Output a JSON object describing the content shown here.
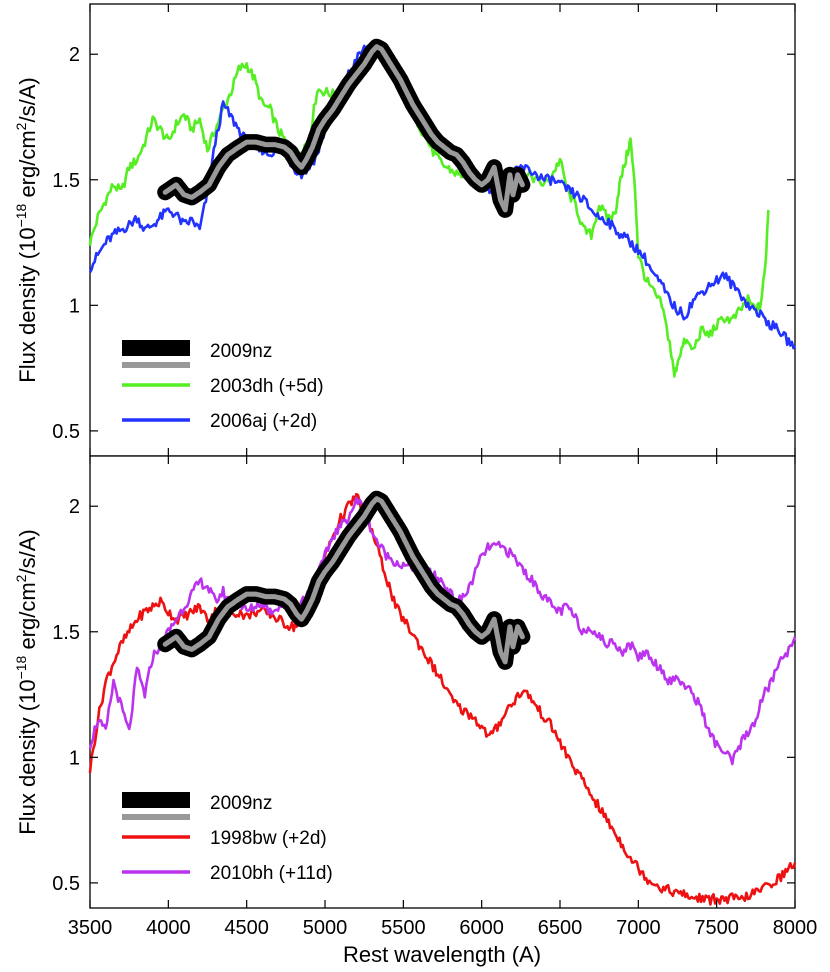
{
  "chart_data": [
    {
      "type": "line",
      "panel": "top",
      "xlabel": "Rest wavelength  (A)",
      "ylabel": "Flux density  (10",
      "ylabel_exp": "−18",
      "ylabel_unit": " erg/cm",
      "ylabel_unit_exp": "2",
      "ylabel_tail": "/s/A)",
      "xlim": [
        3500,
        8000
      ],
      "ylim": [
        0.4,
        2.2
      ],
      "xticks": [
        3500,
        4000,
        4500,
        5000,
        5500,
        6000,
        6500,
        7000,
        7500,
        8000
      ],
      "yticks": [
        0.5,
        1,
        1.5,
        2
      ],
      "ytick_labels": [
        "0.5",
        "1",
        "1.5",
        "2"
      ],
      "legend": [
        "2009nz",
        "2003dh (+5d)",
        "2006aj (+2d)"
      ],
      "legend_position": "bottom-left",
      "series": [
        {
          "name": "2009nz",
          "color": "#000000",
          "overlay_color": "#999999",
          "x": [
            3980,
            4050,
            4100,
            4150,
            4200,
            4260,
            4320,
            4380,
            4450,
            4500,
            4560,
            4620,
            4680,
            4740,
            4780,
            4820,
            4850,
            4880,
            4920,
            4960,
            5000,
            5050,
            5100,
            5150,
            5200,
            5250,
            5300,
            5330,
            5360,
            5400,
            5440,
            5480,
            5520,
            5560,
            5600,
            5640,
            5680,
            5720,
            5760,
            5800,
            5840,
            5880,
            5920,
            5960,
            6000,
            6040,
            6080,
            6120,
            6150,
            6180,
            6200,
            6230,
            6260
          ],
          "y": [
            1.45,
            1.48,
            1.44,
            1.43,
            1.45,
            1.48,
            1.55,
            1.6,
            1.63,
            1.65,
            1.65,
            1.64,
            1.64,
            1.63,
            1.61,
            1.57,
            1.55,
            1.58,
            1.63,
            1.7,
            1.74,
            1.78,
            1.83,
            1.88,
            1.92,
            1.96,
            2.01,
            2.03,
            2.02,
            1.98,
            1.94,
            1.9,
            1.85,
            1.8,
            1.76,
            1.72,
            1.68,
            1.65,
            1.63,
            1.61,
            1.6,
            1.57,
            1.53,
            1.5,
            1.48,
            1.5,
            1.55,
            1.42,
            1.38,
            1.52,
            1.44,
            1.52,
            1.48
          ]
        },
        {
          "name": "2003dh (+5d)",
          "color": "#55ee22",
          "x": [
            3500,
            3550,
            3600,
            3650,
            3700,
            3750,
            3800,
            3850,
            3900,
            3950,
            4000,
            4050,
            4100,
            4150,
            4200,
            4250,
            4300,
            4350,
            4400,
            4450,
            4500,
            4550,
            4600,
            4650,
            4700,
            4750,
            4800,
            4850,
            4900,
            4950,
            5000,
            5050,
            5100,
            5150,
            5200,
            5250,
            5300,
            5350,
            5400,
            5450,
            5500,
            5550,
            5600,
            5650,
            5700,
            5750,
            5800,
            5850,
            5900,
            5950,
            6000,
            6050,
            6100,
            6150,
            6200,
            6250,
            6300,
            6350,
            6400,
            6450,
            6500,
            6550,
            6600,
            6650,
            6700,
            6750,
            6800,
            6850,
            6880,
            6920,
            6950,
            6980,
            7000,
            7050,
            7100,
            7150,
            7200,
            7230,
            7260,
            7300,
            7350,
            7400,
            7450,
            7500,
            7550,
            7600,
            7650,
            7700,
            7750,
            7780,
            7810,
            7830
          ],
          "y": [
            1.25,
            1.35,
            1.42,
            1.48,
            1.45,
            1.55,
            1.58,
            1.65,
            1.74,
            1.7,
            1.65,
            1.72,
            1.76,
            1.7,
            1.74,
            1.62,
            1.7,
            1.78,
            1.85,
            1.94,
            1.96,
            1.9,
            1.8,
            1.78,
            1.7,
            1.65,
            1.6,
            1.62,
            1.66,
            1.86,
            1.85,
            1.84,
            1.86,
            1.9,
            1.94,
            1.98,
            2.02,
            2.0,
            1.96,
            1.9,
            1.84,
            1.78,
            1.72,
            1.66,
            1.6,
            1.56,
            1.54,
            1.52,
            1.52,
            1.5,
            1.48,
            1.5,
            1.5,
            1.52,
            1.5,
            1.48,
            1.52,
            1.5,
            1.48,
            1.52,
            1.58,
            1.45,
            1.4,
            1.3,
            1.28,
            1.4,
            1.35,
            1.36,
            1.48,
            1.58,
            1.66,
            1.45,
            1.2,
            1.1,
            1.05,
            1.0,
            0.85,
            0.72,
            0.8,
            0.86,
            0.82,
            0.9,
            0.88,
            0.92,
            0.95,
            0.94,
            0.98,
            1.02,
            0.98,
            1.0,
            1.15,
            1.38
          ]
        },
        {
          "name": "2006aj (+2d)",
          "color": "#2233ff",
          "x": [
            3500,
            3550,
            3600,
            3650,
            3700,
            3750,
            3800,
            3850,
            3900,
            3950,
            4000,
            4050,
            4100,
            4150,
            4200,
            4250,
            4300,
            4350,
            4400,
            4450,
            4500,
            4550,
            4600,
            4650,
            4700,
            4750,
            4800,
            4850,
            4900,
            4950,
            5000,
            5050,
            5100,
            5150,
            5200,
            5250,
            5300,
            5350,
            5400,
            5450,
            5500,
            5550,
            5600,
            5650,
            5700,
            5750,
            5800,
            5850,
            5900,
            5950,
            6000,
            6050,
            6100,
            6150,
            6200,
            6250,
            6300,
            6350,
            6400,
            6450,
            6500,
            6550,
            6600,
            6650,
            6700,
            6750,
            6800,
            6850,
            6900,
            6950,
            7000,
            7050,
            7100,
            7150,
            7200,
            7250,
            7300,
            7350,
            7400,
            7450,
            7500,
            7550,
            7600,
            7650,
            7700,
            7750,
            7800,
            7850,
            7900,
            7950,
            8000
          ],
          "y": [
            1.15,
            1.2,
            1.25,
            1.28,
            1.3,
            1.32,
            1.35,
            1.3,
            1.32,
            1.35,
            1.38,
            1.36,
            1.32,
            1.34,
            1.3,
            1.45,
            1.65,
            1.8,
            1.75,
            1.7,
            1.65,
            1.62,
            1.62,
            1.6,
            1.64,
            1.6,
            1.55,
            1.52,
            1.55,
            1.6,
            1.7,
            1.78,
            1.85,
            1.92,
            1.98,
            2.02,
            2.04,
            2.02,
            1.98,
            1.92,
            1.86,
            1.8,
            1.74,
            1.68,
            1.64,
            1.62,
            1.6,
            1.58,
            1.55,
            1.5,
            1.48,
            1.46,
            1.48,
            1.5,
            1.52,
            1.55,
            1.54,
            1.52,
            1.5,
            1.5,
            1.48,
            1.46,
            1.44,
            1.42,
            1.38,
            1.35,
            1.34,
            1.3,
            1.28,
            1.25,
            1.22,
            1.18,
            1.12,
            1.08,
            1.02,
            0.98,
            0.96,
            1.02,
            1.05,
            1.08,
            1.1,
            1.12,
            1.08,
            1.05,
            1.0,
            0.98,
            0.95,
            0.92,
            0.9,
            0.86,
            0.84
          ]
        }
      ]
    },
    {
      "type": "line",
      "panel": "bottom",
      "xlabel": "Rest wavelength  (A)",
      "ylabel": "Flux density  (10",
      "ylabel_exp": "−18",
      "ylabel_unit": " erg/cm",
      "ylabel_unit_exp": "2",
      "ylabel_tail": "/s/A)",
      "xlim": [
        3500,
        8000
      ],
      "ylim": [
        0.4,
        2.2
      ],
      "xticks": [
        3500,
        4000,
        4500,
        5000,
        5500,
        6000,
        6500,
        7000,
        7500,
        8000
      ],
      "xtick_labels": [
        "3500",
        "4000",
        "4500",
        "5000",
        "5500",
        "6000",
        "6500",
        "7000",
        "7500",
        "8000"
      ],
      "yticks": [
        0.5,
        1,
        1.5,
        2
      ],
      "ytick_labels": [
        "0.5",
        "1",
        "1.5",
        "2"
      ],
      "legend": [
        "2009nz",
        "1998bw (+2d)",
        "2010bh (+11d)"
      ],
      "legend_position": "bottom-left",
      "series": [
        {
          "name": "2009nz",
          "color": "#000000",
          "overlay_color": "#999999",
          "x": [
            3980,
            4050,
            4100,
            4150,
            4200,
            4260,
            4320,
            4380,
            4450,
            4500,
            4560,
            4620,
            4680,
            4740,
            4780,
            4820,
            4850,
            4880,
            4920,
            4960,
            5000,
            5050,
            5100,
            5150,
            5200,
            5250,
            5300,
            5330,
            5360,
            5400,
            5440,
            5480,
            5520,
            5560,
            5600,
            5640,
            5680,
            5720,
            5760,
            5800,
            5840,
            5880,
            5920,
            5960,
            6000,
            6040,
            6080,
            6120,
            6150,
            6180,
            6200,
            6230,
            6260
          ],
          "y": [
            1.45,
            1.48,
            1.44,
            1.43,
            1.45,
            1.48,
            1.55,
            1.6,
            1.63,
            1.65,
            1.65,
            1.64,
            1.64,
            1.63,
            1.61,
            1.57,
            1.55,
            1.58,
            1.63,
            1.7,
            1.74,
            1.78,
            1.83,
            1.88,
            1.92,
            1.96,
            2.01,
            2.03,
            2.02,
            1.98,
            1.94,
            1.9,
            1.85,
            1.8,
            1.76,
            1.72,
            1.68,
            1.65,
            1.63,
            1.61,
            1.6,
            1.57,
            1.53,
            1.5,
            1.48,
            1.5,
            1.55,
            1.42,
            1.38,
            1.52,
            1.44,
            1.52,
            1.48
          ]
        },
        {
          "name": "1998bw (+2d)",
          "color": "#ee1111",
          "x": [
            3500,
            3550,
            3600,
            3650,
            3700,
            3750,
            3800,
            3850,
            3900,
            3950,
            4000,
            4050,
            4100,
            4150,
            4200,
            4250,
            4300,
            4350,
            4400,
            4450,
            4500,
            4550,
            4600,
            4650,
            4700,
            4750,
            4800,
            4850,
            4900,
            4950,
            5000,
            5050,
            5100,
            5150,
            5200,
            5250,
            5300,
            5350,
            5400,
            5450,
            5500,
            5550,
            5600,
            5650,
            5700,
            5750,
            5800,
            5850,
            5900,
            5950,
            6000,
            6050,
            6100,
            6150,
            6200,
            6250,
            6300,
            6350,
            6400,
            6450,
            6500,
            6550,
            6600,
            6650,
            6700,
            6750,
            6800,
            6850,
            6900,
            6950,
            7000,
            7050,
            7100,
            7150,
            7200,
            7250,
            7300,
            7350,
            7400,
            7450,
            7500,
            7550,
            7600,
            7650,
            7700,
            7750,
            7800,
            7850,
            7900,
            7950,
            8000
          ],
          "y": [
            0.95,
            1.15,
            1.3,
            1.38,
            1.45,
            1.5,
            1.55,
            1.58,
            1.6,
            1.62,
            1.58,
            1.55,
            1.56,
            1.58,
            1.6,
            1.55,
            1.58,
            1.55,
            1.57,
            1.58,
            1.56,
            1.58,
            1.58,
            1.57,
            1.55,
            1.53,
            1.52,
            1.55,
            1.6,
            1.7,
            1.8,
            1.88,
            1.95,
            2.0,
            2.04,
            1.98,
            1.9,
            1.8,
            1.7,
            1.6,
            1.55,
            1.5,
            1.45,
            1.4,
            1.35,
            1.3,
            1.24,
            1.2,
            1.18,
            1.16,
            1.12,
            1.08,
            1.12,
            1.18,
            1.22,
            1.26,
            1.25,
            1.2,
            1.16,
            1.12,
            1.06,
            1.0,
            0.95,
            0.9,
            0.85,
            0.8,
            0.75,
            0.7,
            0.65,
            0.6,
            0.56,
            0.52,
            0.5,
            0.48,
            0.47,
            0.46,
            0.45,
            0.44,
            0.44,
            0.43,
            0.44,
            0.43,
            0.44,
            0.43,
            0.45,
            0.46,
            0.48,
            0.5,
            0.52,
            0.55,
            0.58
          ]
        },
        {
          "name": "2010bh (+11d)",
          "color": "#bb33ee",
          "x": [
            3500,
            3550,
            3600,
            3650,
            3700,
            3750,
            3800,
            3850,
            3900,
            3950,
            4000,
            4050,
            4100,
            4150,
            4200,
            4250,
            4300,
            4350,
            4400,
            4450,
            4500,
            4550,
            4600,
            4650,
            4700,
            4750,
            4800,
            4850,
            4900,
            4950,
            5000,
            5050,
            5100,
            5150,
            5200,
            5250,
            5300,
            5350,
            5400,
            5450,
            5500,
            5550,
            5600,
            5650,
            5700,
            5750,
            5800,
            5850,
            5900,
            5950,
            6000,
            6050,
            6100,
            6150,
            6200,
            6250,
            6300,
            6350,
            6400,
            6450,
            6500,
            6550,
            6600,
            6650,
            6700,
            6750,
            6800,
            6850,
            6900,
            6950,
            7000,
            7050,
            7100,
            7150,
            7200,
            7250,
            7300,
            7350,
            7400,
            7450,
            7500,
            7550,
            7600,
            7650,
            7700,
            7750,
            7800,
            7850,
            7900,
            7950,
            8000
          ],
          "y": [
            1.05,
            1.15,
            1.1,
            1.3,
            1.2,
            1.1,
            1.35,
            1.25,
            1.4,
            1.45,
            1.5,
            1.55,
            1.6,
            1.65,
            1.7,
            1.68,
            1.62,
            1.66,
            1.6,
            1.62,
            1.58,
            1.6,
            1.62,
            1.58,
            1.6,
            1.62,
            1.6,
            1.62,
            1.66,
            1.72,
            1.8,
            1.88,
            1.92,
            1.96,
            2.02,
            2.0,
            1.9,
            1.84,
            1.8,
            1.78,
            1.76,
            1.76,
            1.75,
            1.74,
            1.72,
            1.7,
            1.65,
            1.62,
            1.65,
            1.72,
            1.8,
            1.84,
            1.84,
            1.83,
            1.8,
            1.76,
            1.72,
            1.68,
            1.64,
            1.6,
            1.58,
            1.6,
            1.55,
            1.5,
            1.52,
            1.48,
            1.45,
            1.46,
            1.42,
            1.45,
            1.4,
            1.42,
            1.38,
            1.35,
            1.3,
            1.32,
            1.28,
            1.25,
            1.2,
            1.1,
            1.05,
            1.02,
            0.98,
            1.05,
            1.1,
            1.15,
            1.25,
            1.3,
            1.38,
            1.42,
            1.48
          ]
        }
      ]
    }
  ]
}
